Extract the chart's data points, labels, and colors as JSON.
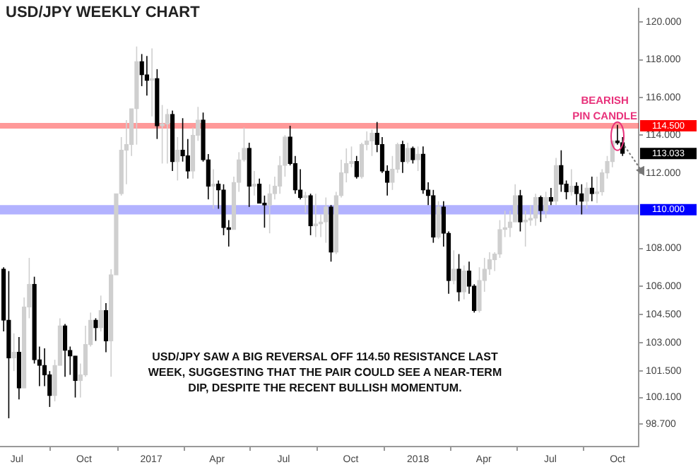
{
  "chart_data": {
    "type": "candlestick",
    "title": "USD/JPY WEEKLY CHART",
    "annotations": [
      "USD/JPY SAW A BIG REVERSAL OFF 114.50 RESISTANCE LAST WEEK, SUGGESTING THAT THE PAIR COULD SEE A NEAR-TERM DIP, DESPITE THE RECENT BULLISH MOMENTUM.",
      "113.033",
      {
        "text": "BEARISH PIN CANDLE",
        "x": "2018-10-01",
        "y": 114.55
      }
    ],
    "x": [
      "2016-06-13",
      "2016-06-20",
      "2016-06-27",
      "2016-07-04",
      "2016-07-11",
      "2016-07-18",
      "2016-07-25",
      "2016-08-01",
      "2016-08-08",
      "2016-08-15",
      "2016-08-22",
      "2016-08-29",
      "2016-09-05",
      "2016-09-12",
      "2016-09-19",
      "2016-09-26",
      "2016-10-03",
      "2016-10-10",
      "2016-10-17",
      "2016-10-24",
      "2016-10-31",
      "2016-11-07",
      "2016-11-14",
      "2016-11-21",
      "2016-11-28",
      "2016-12-05",
      "2016-12-12",
      "2016-12-19",
      "2016-12-26",
      "2017-01-02",
      "2017-01-09",
      "2017-01-16",
      "2017-01-23",
      "2017-01-30",
      "2017-02-06",
      "2017-02-13",
      "2017-02-20",
      "2017-02-27",
      "2017-03-06",
      "2017-03-13",
      "2017-03-20",
      "2017-03-27",
      "2017-04-03",
      "2017-04-10",
      "2017-04-17",
      "2017-04-24",
      "2017-05-01",
      "2017-05-08",
      "2017-05-15",
      "2017-05-22",
      "2017-05-29",
      "2017-06-05",
      "2017-06-12",
      "2017-06-19",
      "2017-06-26",
      "2017-07-03",
      "2017-07-10",
      "2017-07-17",
      "2017-07-24",
      "2017-07-31",
      "2017-08-07",
      "2017-08-14",
      "2017-08-21",
      "2017-08-28",
      "2017-09-04",
      "2017-09-11",
      "2017-09-18",
      "2017-09-25",
      "2017-10-02",
      "2017-10-09",
      "2017-10-16",
      "2017-10-23",
      "2017-10-30",
      "2017-11-06",
      "2017-11-13",
      "2017-11-20",
      "2017-11-27",
      "2017-12-04",
      "2017-12-11",
      "2017-12-18",
      "2017-12-25",
      "2018-01-01",
      "2018-01-08",
      "2018-01-15",
      "2018-01-22",
      "2018-01-29",
      "2018-02-05",
      "2018-02-12",
      "2018-02-19",
      "2018-02-26",
      "2018-03-05",
      "2018-03-12",
      "2018-03-19",
      "2018-03-26",
      "2018-04-02",
      "2018-04-09",
      "2018-04-16",
      "2018-04-23",
      "2018-04-30",
      "2018-05-07",
      "2018-05-14",
      "2018-05-21",
      "2018-05-28",
      "2018-06-04",
      "2018-06-11",
      "2018-06-18",
      "2018-06-25",
      "2018-07-02",
      "2018-07-09",
      "2018-07-16",
      "2018-07-23",
      "2018-07-30",
      "2018-08-06",
      "2018-08-13",
      "2018-08-20",
      "2018-08-27",
      "2018-09-03",
      "2018-09-10",
      "2018-09-17",
      "2018-09-24",
      "2018-10-01",
      "2018-10-08"
    ],
    "ohlc": [
      [
        106.9,
        107.0,
        103.6,
        104.2
      ],
      [
        104.2,
        106.8,
        99.0,
        102.2
      ],
      [
        102.2,
        103.5,
        101.5,
        102.5
      ],
      [
        102.5,
        103.3,
        100.0,
        100.6
      ],
      [
        100.6,
        105.4,
        100.6,
        104.9
      ],
      [
        104.9,
        107.5,
        104.3,
        106.1
      ],
      [
        106.1,
        106.5,
        101.9,
        102.1
      ],
      [
        102.1,
        102.8,
        100.7,
        101.8
      ],
      [
        101.8,
        102.7,
        100.7,
        101.3
      ],
      [
        101.3,
        101.5,
        99.6,
        100.2
      ],
      [
        100.2,
        102.1,
        99.9,
        101.8
      ],
      [
        101.8,
        104.3,
        101.8,
        103.9
      ],
      [
        103.9,
        104.0,
        101.2,
        102.6
      ],
      [
        102.6,
        102.8,
        101.3,
        102.3
      ],
      [
        102.3,
        102.3,
        100.1,
        101.0
      ],
      [
        101.0,
        101.9,
        100.1,
        101.3
      ],
      [
        101.3,
        103.9,
        101.2,
        102.9
      ],
      [
        102.9,
        104.6,
        102.8,
        104.2
      ],
      [
        104.2,
        104.3,
        103.1,
        103.8
      ],
      [
        103.8,
        105.5,
        103.6,
        104.7
      ],
      [
        104.7,
        105.1,
        102.5,
        103.1
      ],
      [
        103.1,
        106.9,
        101.2,
        106.6
      ],
      [
        106.6,
        110.9,
        106.6,
        110.9
      ],
      [
        110.9,
        113.9,
        110.8,
        113.2
      ],
      [
        113.2,
        114.8,
        111.4,
        113.5
      ],
      [
        113.5,
        115.4,
        112.9,
        115.4
      ],
      [
        115.4,
        118.7,
        113.5,
        117.9
      ],
      [
        117.9,
        118.3,
        116.6,
        117.2
      ],
      [
        117.2,
        118.2,
        116.1,
        116.9
      ],
      [
        116.9,
        118.6,
        115.0,
        117.0
      ],
      [
        117.0,
        117.5,
        113.8,
        114.5
      ],
      [
        114.5,
        115.6,
        112.5,
        114.6
      ],
      [
        114.6,
        115.4,
        112.5,
        115.1
      ],
      [
        115.1,
        115.3,
        112.1,
        112.6
      ],
      [
        112.6,
        113.9,
        111.6,
        113.2
      ],
      [
        113.2,
        114.9,
        112.6,
        112.9
      ],
      [
        112.9,
        113.8,
        111.7,
        112.1
      ],
      [
        112.1,
        114.4,
        111.7,
        114.0
      ],
      [
        114.0,
        115.5,
        113.7,
        114.8
      ],
      [
        114.8,
        115.2,
        112.6,
        112.7
      ],
      [
        112.7,
        113.0,
        110.6,
        111.3
      ],
      [
        111.3,
        112.2,
        110.1,
        111.4
      ],
      [
        111.4,
        111.6,
        110.1,
        111.1
      ],
      [
        111.1,
        111.4,
        108.7,
        109.1
      ],
      [
        109.1,
        109.5,
        108.1,
        109.0
      ],
      [
        109.0,
        111.8,
        109.0,
        111.5
      ],
      [
        111.5,
        113.1,
        111.0,
        112.7
      ],
      [
        112.7,
        114.4,
        112.6,
        113.3
      ],
      [
        113.3,
        113.6,
        110.2,
        111.3
      ],
      [
        111.3,
        112.1,
        110.8,
        111.4
      ],
      [
        111.4,
        111.7,
        110.4,
        110.4
      ],
      [
        110.4,
        110.8,
        109.1,
        110.3
      ],
      [
        110.3,
        111.4,
        108.8,
        110.9
      ],
      [
        110.9,
        111.8,
        110.6,
        111.3
      ],
      [
        111.3,
        112.9,
        110.9,
        112.4
      ],
      [
        112.4,
        114.0,
        111.8,
        113.9
      ],
      [
        113.9,
        114.5,
        112.4,
        112.5
      ],
      [
        112.5,
        112.9,
        110.9,
        111.1
      ],
      [
        111.1,
        112.2,
        110.6,
        110.7
      ],
      [
        110.7,
        111.0,
        109.9,
        110.8
      ],
      [
        110.8,
        110.9,
        108.7,
        109.2
      ],
      [
        109.2,
        110.9,
        108.6,
        109.3
      ],
      [
        109.3,
        109.8,
        108.6,
        109.4
      ],
      [
        109.4,
        110.7,
        108.3,
        110.2
      ],
      [
        110.2,
        110.3,
        107.3,
        107.8
      ],
      [
        107.8,
        111.0,
        107.7,
        110.8
      ],
      [
        110.8,
        112.7,
        110.7,
        112.0
      ],
      [
        112.0,
        113.3,
        111.5,
        112.5
      ],
      [
        112.5,
        113.4,
        112.3,
        112.6
      ],
      [
        112.6,
        112.9,
        111.7,
        111.8
      ],
      [
        111.8,
        113.6,
        111.7,
        113.5
      ],
      [
        113.5,
        114.2,
        113.2,
        113.7
      ],
      [
        113.7,
        114.3,
        112.9,
        114.1
      ],
      [
        114.1,
        114.7,
        113.1,
        113.5
      ],
      [
        113.5,
        113.9,
        112.0,
        112.1
      ],
      [
        112.1,
        112.4,
        110.8,
        111.5
      ],
      [
        111.5,
        112.9,
        111.1,
        112.2
      ],
      [
        112.2,
        113.6,
        112.0,
        113.5
      ],
      [
        113.5,
        113.7,
        112.0,
        112.6
      ],
      [
        112.6,
        113.6,
        112.5,
        113.3
      ],
      [
        113.3,
        113.4,
        112.5,
        112.7
      ],
      [
        112.7,
        113.4,
        112.1,
        113.0
      ],
      [
        113.0,
        113.4,
        110.9,
        111.1
      ],
      [
        111.1,
        111.5,
        110.3,
        110.8
      ],
      [
        110.8,
        111.1,
        108.3,
        108.6
      ],
      [
        108.6,
        110.5,
        108.5,
        110.2
      ],
      [
        110.2,
        110.5,
        108.1,
        108.8
      ],
      [
        108.8,
        108.9,
        105.6,
        106.3
      ],
      [
        106.3,
        107.9,
        106.1,
        106.9
      ],
      [
        106.9,
        107.7,
        105.2,
        105.7
      ],
      [
        105.7,
        107.1,
        105.3,
        106.8
      ],
      [
        106.8,
        107.3,
        105.6,
        106.0
      ],
      [
        106.0,
        106.1,
        104.6,
        104.7
      ],
      [
        104.7,
        107.0,
        104.6,
        106.3
      ],
      [
        106.3,
        107.5,
        105.7,
        106.9
      ],
      [
        106.9,
        107.8,
        106.6,
        107.4
      ],
      [
        107.4,
        107.8,
        106.8,
        107.7
      ],
      [
        107.7,
        109.5,
        107.5,
        109.0
      ],
      [
        109.0,
        110.0,
        108.6,
        109.1
      ],
      [
        109.1,
        110.0,
        108.6,
        109.4
      ],
      [
        109.4,
        111.4,
        109.4,
        110.8
      ],
      [
        110.8,
        111.1,
        108.9,
        109.4
      ],
      [
        109.4,
        110.0,
        108.1,
        109.5
      ],
      [
        109.5,
        110.3,
        109.2,
        109.6
      ],
      [
        109.6,
        110.9,
        109.2,
        110.7
      ],
      [
        110.7,
        110.8,
        109.4,
        110.0
      ],
      [
        110.0,
        111.0,
        109.6,
        110.7
      ],
      [
        110.7,
        111.2,
        110.3,
        110.5
      ],
      [
        110.5,
        112.8,
        110.3,
        112.4
      ],
      [
        112.4,
        113.2,
        111.0,
        111.4
      ],
      [
        111.4,
        111.6,
        110.6,
        111.0
      ],
      [
        111.0,
        112.2,
        110.8,
        111.3
      ],
      [
        111.3,
        111.5,
        110.3,
        110.9
      ],
      [
        110.9,
        111.4,
        109.8,
        110.5
      ],
      [
        110.5,
        111.5,
        110.1,
        111.2
      ],
      [
        111.2,
        111.8,
        110.5,
        110.9
      ],
      [
        110.9,
        111.8,
        110.4,
        111.0
      ],
      [
        111.0,
        112.2,
        110.8,
        112.0
      ],
      [
        112.0,
        112.9,
        111.7,
        112.6
      ],
      [
        112.6,
        113.7,
        112.3,
        113.7
      ],
      [
        113.7,
        114.55,
        113.5,
        113.6
      ],
      [
        113.6,
        113.9,
        112.9,
        113.033
      ]
    ],
    "colors": [
      "#000000",
      "#000000",
      "#cfcfcf",
      "#000000",
      "#cfcfcf",
      "#cfcfcf",
      "#000000",
      "#000000",
      "#000000",
      "#000000",
      "#cfcfcf",
      "#cfcfcf",
      "#000000",
      "#000000",
      "#000000",
      "#cfcfcf",
      "#cfcfcf",
      "#cfcfcf",
      "#000000",
      "#cfcfcf",
      "#000000",
      "#cfcfcf",
      "#cfcfcf",
      "#cfcfcf",
      "#cfcfcf",
      "#cfcfcf",
      "#cfcfcf",
      "#000000",
      "#000000",
      "#cfcfcf",
      "#000000",
      "#cfcfcf",
      "#cfcfcf",
      "#000000",
      "#cfcfcf",
      "#000000",
      "#000000",
      "#cfcfcf",
      "#cfcfcf",
      "#000000",
      "#000000",
      "#cfcfcf",
      "#000000",
      "#000000",
      "#000000",
      "#cfcfcf",
      "#cfcfcf",
      "#cfcfcf",
      "#000000",
      "#cfcfcf",
      "#000000",
      "#000000",
      "#cfcfcf",
      "#cfcfcf",
      "#cfcfcf",
      "#cfcfcf",
      "#000000",
      "#000000",
      "#000000",
      "#cfcfcf",
      "#000000",
      "#cfcfcf",
      "#cfcfcf",
      "#cfcfcf",
      "#000000",
      "#cfcfcf",
      "#cfcfcf",
      "#cfcfcf",
      "#cfcfcf",
      "#000000",
      "#cfcfcf",
      "#cfcfcf",
      "#cfcfcf",
      "#000000",
      "#000000",
      "#000000",
      "#cfcfcf",
      "#cfcfcf",
      "#000000",
      "#cfcfcf",
      "#000000",
      "#cfcfcf",
      "#000000",
      "#000000",
      "#000000",
      "#cfcfcf",
      "#000000",
      "#000000",
      "#cfcfcf",
      "#000000",
      "#cfcfcf",
      "#000000",
      "#000000",
      "#cfcfcf",
      "#cfcfcf",
      "#cfcfcf",
      "#cfcfcf",
      "#cfcfcf",
      "#cfcfcf",
      "#cfcfcf",
      "#cfcfcf",
      "#000000",
      "#cfcfcf",
      "#cfcfcf",
      "#cfcfcf",
      "#000000",
      "#cfcfcf",
      "#000000",
      "#cfcfcf",
      "#000000",
      "#000000",
      "#cfcfcf",
      "#000000",
      "#000000",
      "#cfcfcf",
      "#000000",
      "#cfcfcf",
      "#cfcfcf",
      "#cfcfcf",
      "#cfcfcf",
      "#000000",
      "#000000"
    ],
    "xlim": [
      "2016-06-08",
      "2018-10-30"
    ],
    "xticks": [
      {
        "value": "2016-07-01",
        "label": "Jul"
      },
      {
        "value": "2016-10-01",
        "label": "Oct"
      },
      {
        "value": "2017-01-01",
        "label": "2017"
      },
      {
        "value": "2017-04-01",
        "label": "Apr"
      },
      {
        "value": "2017-07-01",
        "label": "Jul"
      },
      {
        "value": "2017-10-01",
        "label": "Oct"
      },
      {
        "value": "2018-01-01",
        "label": "2018"
      },
      {
        "value": "2018-04-01",
        "label": "Apr"
      },
      {
        "value": "2018-07-01",
        "label": "Jul"
      },
      {
        "value": "2018-10-01",
        "label": "Oct"
      }
    ],
    "ylim": [
      97.5,
      120.7
    ],
    "yticks": [
      {
        "value": 120,
        "label": "120.000"
      },
      {
        "value": 118,
        "label": "118.000"
      },
      {
        "value": 116,
        "label": "116.000"
      },
      {
        "value": 114,
        "label": "114.000"
      },
      {
        "value": 112,
        "label": "112.000"
      },
      {
        "value": 108,
        "label": "108.000"
      },
      {
        "value": 106,
        "label": "106.000"
      },
      {
        "value": 104.5,
        "label": "104.500"
      },
      {
        "value": 103,
        "label": "103.000"
      },
      {
        "value": 101.5,
        "label": "101.500"
      },
      {
        "value": 100.1,
        "label": "100.100"
      },
      {
        "value": 98.7,
        "label": "98.700"
      }
    ],
    "ref_lines": [
      {
        "axis": "y",
        "value": 114.5,
        "label": "114.500",
        "color": "#ff0000"
      }
    ],
    "bands": [
      {
        "axis": "y",
        "from": 109.8,
        "to": 110.3,
        "label": "110.000",
        "color": "#0000ff"
      }
    ]
  }
}
